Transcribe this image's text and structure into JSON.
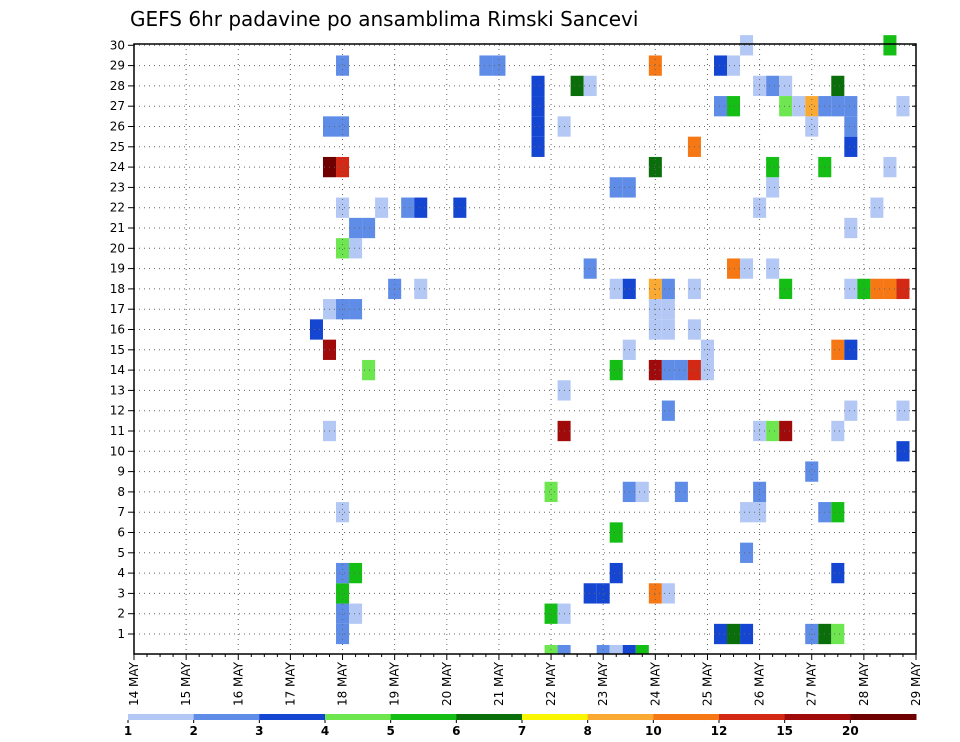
{
  "chart_data": {
    "type": "heatmap",
    "title": "GEFS 6hr padavine po ansamblima Rimski Sancevi",
    "x_ticks": [
      "14 MAY",
      "15 MAY",
      "16 MAY",
      "17 MAY",
      "18 MAY",
      "19 MAY",
      "20 MAY",
      "21 MAY",
      "22 MAY",
      "23 MAY",
      "24 MAY",
      "25 MAY",
      "26 MAY",
      "27 MAY",
      "28 MAY",
      "29 MAY"
    ],
    "y_ticks": [
      "1",
      "2",
      "3",
      "4",
      "5",
      "6",
      "7",
      "8",
      "9",
      "10",
      "11",
      "12",
      "13",
      "14",
      "15",
      "16",
      "17",
      "18",
      "19",
      "20",
      "21",
      "22",
      "23",
      "24",
      "25",
      "26",
      "27",
      "28",
      "29",
      "30"
    ],
    "colorbar": {
      "labels": [
        "1",
        "2",
        "3",
        "4",
        "5",
        "6",
        "7",
        "8",
        "10",
        "12",
        "15",
        "20"
      ],
      "colors": [
        "#b4c8f5",
        "#5f8ce6",
        "#1446d2",
        "#6ee650",
        "#14be14",
        "#0a6e0a",
        "#faf500",
        "#faaa32",
        "#f57814",
        "#d22814",
        "#a00a0a",
        "#6e0000"
      ]
    },
    "grid": true,
    "cells": [
      {
        "d": "18 MAY",
        "h": 0,
        "m": 1,
        "v": 2
      },
      {
        "d": "18 MAY",
        "h": 0,
        "m": 2,
        "v": 2
      },
      {
        "d": "18 MAY",
        "h": 6,
        "m": 2,
        "v": 1
      },
      {
        "d": "18 MAY",
        "h": 0,
        "m": 3,
        "v": 5
      },
      {
        "d": "18 MAY",
        "h": 0,
        "m": 4,
        "v": 2
      },
      {
        "d": "18 MAY",
        "h": 6,
        "m": 4,
        "v": 5
      },
      {
        "d": "18 MAY",
        "h": 0,
        "m": 7,
        "v": 1
      },
      {
        "d": "17 MAY",
        "h": 18,
        "m": 11,
        "v": 1
      },
      {
        "d": "18 MAY",
        "h": 12,
        "m": 14,
        "v": 4
      },
      {
        "d": "17 MAY",
        "h": 18,
        "m": 15,
        "v": 15
      },
      {
        "d": "17 MAY",
        "h": 12,
        "m": 16,
        "v": 3
      },
      {
        "d": "17 MAY",
        "h": 18,
        "m": 17,
        "v": 1
      },
      {
        "d": "18 MAY",
        "h": 0,
        "m": 17,
        "v": 2
      },
      {
        "d": "18 MAY",
        "h": 6,
        "m": 17,
        "v": 2
      },
      {
        "d": "18 MAY",
        "h": 0,
        "m": 20,
        "v": 4
      },
      {
        "d": "18 MAY",
        "h": 6,
        "m": 20,
        "v": 1
      },
      {
        "d": "18 MAY",
        "h": 6,
        "m": 21,
        "v": 2
      },
      {
        "d": "18 MAY",
        "h": 12,
        "m": 21,
        "v": 2
      },
      {
        "d": "18 MAY",
        "h": 0,
        "m": 22,
        "v": 1
      },
      {
        "d": "17 MAY",
        "h": 18,
        "m": 24,
        "v": 20
      },
      {
        "d": "18 MAY",
        "h": 0,
        "m": 24,
        "v": 12
      },
      {
        "d": "17 MAY",
        "h": 18,
        "m": 26,
        "v": 2
      },
      {
        "d": "18 MAY",
        "h": 0,
        "m": 26,
        "v": 2
      },
      {
        "d": "18 MAY",
        "h": 0,
        "m": 29,
        "v": 2
      },
      {
        "d": "19 MAY",
        "h": 0,
        "m": 18,
        "v": 2
      },
      {
        "d": "19 MAY",
        "h": 12,
        "m": 18,
        "v": 1
      },
      {
        "d": "18 MAY",
        "h": 18,
        "m": 22,
        "v": 1
      },
      {
        "d": "19 MAY",
        "h": 6,
        "m": 22,
        "v": 2
      },
      {
        "d": "19 MAY",
        "h": 12,
        "m": 22,
        "v": 3
      },
      {
        "d": "20 MAY",
        "h": 6,
        "m": 22,
        "v": 3
      },
      {
        "d": "20 MAY",
        "h": 18,
        "m": 29,
        "v": 2
      },
      {
        "d": "21 MAY",
        "h": 0,
        "m": 29,
        "v": 2
      },
      {
        "d": "22 MAY",
        "h": 0,
        "m": 2,
        "v": 5
      },
      {
        "d": "22 MAY",
        "h": 6,
        "m": 2,
        "v": 1
      },
      {
        "d": "22 MAY",
        "h": 0,
        "m": 8,
        "v": 4
      },
      {
        "d": "22 MAY",
        "h": 6,
        "m": 11,
        "v": 15
      },
      {
        "d": "22 MAY",
        "h": 6,
        "m": 13,
        "v": 1
      },
      {
        "d": "21 MAY",
        "h": 18,
        "m": 25,
        "v": 3
      },
      {
        "d": "21 MAY",
        "h": 18,
        "m": 26,
        "v": 3
      },
      {
        "d": "22 MAY",
        "h": 6,
        "m": 26,
        "v": 1
      },
      {
        "d": "21 MAY",
        "h": 18,
        "m": 27,
        "v": 3
      },
      {
        "d": "21 MAY",
        "h": 18,
        "m": 28,
        "v": 3
      },
      {
        "d": "22 MAY",
        "h": 12,
        "m": 28,
        "v": 6
      },
      {
        "d": "22 MAY",
        "h": 18,
        "m": 28,
        "v": 1
      },
      {
        "d": "22 MAY",
        "h": 18,
        "m": 3,
        "v": 3
      },
      {
        "d": "23 MAY",
        "h": 0,
        "m": 3,
        "v": 3
      },
      {
        "d": "23 MAY",
        "h": 6,
        "m": 4,
        "v": 3
      },
      {
        "d": "23 MAY",
        "h": 6,
        "m": 6,
        "v": 5
      },
      {
        "d": "23 MAY",
        "h": 12,
        "m": 8,
        "v": 2
      },
      {
        "d": "23 MAY",
        "h": 18,
        "m": 8,
        "v": 1
      },
      {
        "d": "23 MAY",
        "h": 6,
        "m": 14,
        "v": 5
      },
      {
        "d": "23 MAY",
        "h": 12,
        "m": 15,
        "v": 1
      },
      {
        "d": "23 MAY",
        "h": 6,
        "m": 18,
        "v": 1
      },
      {
        "d": "23 MAY",
        "h": 12,
        "m": 18,
        "v": 3
      },
      {
        "d": "22 MAY",
        "h": 18,
        "m": 19,
        "v": 2
      },
      {
        "d": "23 MAY",
        "h": 6,
        "m": 23,
        "v": 2
      },
      {
        "d": "23 MAY",
        "h": 12,
        "m": 23,
        "v": 2
      },
      {
        "d": "24 MAY",
        "h": 0,
        "m": 3,
        "v": 10
      },
      {
        "d": "24 MAY",
        "h": 6,
        "m": 3,
        "v": 1
      },
      {
        "d": "24 MAY",
        "h": 12,
        "m": 8,
        "v": 2
      },
      {
        "d": "24 MAY",
        "h": 6,
        "m": 12,
        "v": 2
      },
      {
        "d": "24 MAY",
        "h": 0,
        "m": 14,
        "v": 15
      },
      {
        "d": "24 MAY",
        "h": 6,
        "m": 14,
        "v": 2
      },
      {
        "d": "24 MAY",
        "h": 12,
        "m": 14,
        "v": 2
      },
      {
        "d": "24 MAY",
        "h": 18,
        "m": 14,
        "v": 12
      },
      {
        "d": "24 MAY",
        "h": 0,
        "m": 16,
        "v": 1
      },
      {
        "d": "24 MAY",
        "h": 6,
        "m": 16,
        "v": 1
      },
      {
        "d": "24 MAY",
        "h": 18,
        "m": 16,
        "v": 1
      },
      {
        "d": "24 MAY",
        "h": 0,
        "m": 17,
        "v": 1
      },
      {
        "d": "24 MAY",
        "h": 6,
        "m": 17,
        "v": 1
      },
      {
        "d": "24 MAY",
        "h": 0,
        "m": 18,
        "v": 8
      },
      {
        "d": "24 MAY",
        "h": 6,
        "m": 18,
        "v": 2
      },
      {
        "d": "24 MAY",
        "h": 18,
        "m": 18,
        "v": 1
      },
      {
        "d": "24 MAY",
        "h": 0,
        "m": 24,
        "v": 6
      },
      {
        "d": "24 MAY",
        "h": 18,
        "m": 25,
        "v": 10
      },
      {
        "d": "24 MAY",
        "h": 0,
        "m": 29,
        "v": 10
      },
      {
        "d": "25 MAY",
        "h": 0,
        "m": 14,
        "v": 1
      },
      {
        "d": "25 MAY",
        "h": 0,
        "m": 15,
        "v": 1
      },
      {
        "d": "25 MAY",
        "h": 6,
        "m": 1,
        "v": 3
      },
      {
        "d": "25 MAY",
        "h": 12,
        "m": 1,
        "v": 6
      },
      {
        "d": "25 MAY",
        "h": 18,
        "m": 1,
        "v": 3
      },
      {
        "d": "25 MAY",
        "h": 18,
        "m": 5,
        "v": 2
      },
      {
        "d": "25 MAY",
        "h": 18,
        "m": 7,
        "v": 1
      },
      {
        "d": "26 MAY",
        "h": 0,
        "m": 7,
        "v": 1
      },
      {
        "d": "26 MAY",
        "h": 0,
        "m": 8,
        "v": 2
      },
      {
        "d": "26 MAY",
        "h": 0,
        "m": 11,
        "v": 1
      },
      {
        "d": "26 MAY",
        "h": 6,
        "m": 11,
        "v": 4
      },
      {
        "d": "26 MAY",
        "h": 12,
        "m": 11,
        "v": 15
      },
      {
        "d": "25 MAY",
        "h": 12,
        "m": 19,
        "v": 10
      },
      {
        "d": "25 MAY",
        "h": 18,
        "m": 19,
        "v": 1
      },
      {
        "d": "26 MAY",
        "h": 6,
        "m": 19,
        "v": 1
      },
      {
        "d": "26 MAY",
        "h": 12,
        "m": 18,
        "v": 5
      },
      {
        "d": "26 MAY",
        "h": 0,
        "m": 22,
        "v": 1
      },
      {
        "d": "26 MAY",
        "h": 6,
        "m": 23,
        "v": 1
      },
      {
        "d": "26 MAY",
        "h": 6,
        "m": 24,
        "v": 5
      },
      {
        "d": "25 MAY",
        "h": 12,
        "m": 27,
        "v": 5
      },
      {
        "d": "25 MAY",
        "h": 6,
        "m": 27,
        "v": 2
      },
      {
        "d": "25 MAY",
        "h": 6,
        "m": 29,
        "v": 3
      },
      {
        "d": "25 MAY",
        "h": 12,
        "m": 29,
        "v": 1
      },
      {
        "d": "25 MAY",
        "h": 18,
        "m": 30,
        "v": 1
      },
      {
        "d": "26 MAY",
        "h": 6,
        "m": 28,
        "v": 2
      },
      {
        "d": "26 MAY",
        "h": 12,
        "m": 28,
        "v": 1
      },
      {
        "d": "26 MAY",
        "h": 0,
        "m": 28,
        "v": 1
      },
      {
        "d": "26 MAY",
        "h": 12,
        "m": 27,
        "v": 4
      },
      {
        "d": "26 MAY",
        "h": 18,
        "m": 27,
        "v": 1
      },
      {
        "d": "27 MAY",
        "h": 0,
        "m": 1,
        "v": 2
      },
      {
        "d": "27 MAY",
        "h": 6,
        "m": 1,
        "v": 6
      },
      {
        "d": "27 MAY",
        "h": 12,
        "m": 1,
        "v": 4
      },
      {
        "d": "27 MAY",
        "h": 12,
        "m": 4,
        "v": 3
      },
      {
        "d": "27 MAY",
        "h": 6,
        "m": 7,
        "v": 2
      },
      {
        "d": "27 MAY",
        "h": 12,
        "m": 7,
        "v": 5
      },
      {
        "d": "27 MAY",
        "h": 0,
        "m": 9,
        "v": 2
      },
      {
        "d": "27 MAY",
        "h": 12,
        "m": 11,
        "v": 1
      },
      {
        "d": "27 MAY",
        "h": 18,
        "m": 12,
        "v": 1
      },
      {
        "d": "27 MAY",
        "h": 12,
        "m": 15,
        "v": 10
      },
      {
        "d": "27 MAY",
        "h": 18,
        "m": 15,
        "v": 3
      },
      {
        "d": "27 MAY",
        "h": 18,
        "m": 18,
        "v": 1
      },
      {
        "d": "28 MAY",
        "h": 0,
        "m": 18,
        "v": 5
      },
      {
        "d": "28 MAY",
        "h": 6,
        "m": 18,
        "v": 10
      },
      {
        "d": "28 MAY",
        "h": 12,
        "m": 18,
        "v": 10
      },
      {
        "d": "28 MAY",
        "h": 18,
        "m": 18,
        "v": 12
      },
      {
        "d": "27 MAY",
        "h": 18,
        "m": 21,
        "v": 1
      },
      {
        "d": "28 MAY",
        "h": 6,
        "m": 22,
        "v": 1
      },
      {
        "d": "27 MAY",
        "h": 6,
        "m": 24,
        "v": 5
      },
      {
        "d": "27 MAY",
        "h": 18,
        "m": 25,
        "v": 3
      },
      {
        "d": "27 MAY",
        "h": 18,
        "m": 26,
        "v": 2
      },
      {
        "d": "27 MAY",
        "h": 0,
        "m": 26,
        "v": 1
      },
      {
        "d": "27 MAY",
        "h": 0,
        "m": 27,
        "v": 8
      },
      {
        "d": "27 MAY",
        "h": 6,
        "m": 27,
        "v": 2
      },
      {
        "d": "27 MAY",
        "h": 12,
        "m": 27,
        "v": 2
      },
      {
        "d": "27 MAY",
        "h": 18,
        "m": 27,
        "v": 2
      },
      {
        "d": "27 MAY",
        "h": 12,
        "m": 28,
        "v": 6
      },
      {
        "d": "28 MAY",
        "h": 12,
        "m": 30,
        "v": 5
      },
      {
        "d": "28 MAY",
        "h": 18,
        "m": 10,
        "v": 3
      },
      {
        "d": "28 MAY",
        "h": 12,
        "m": 24,
        "v": 1
      },
      {
        "d": "28 MAY",
        "h": 18,
        "m": 27,
        "v": 1
      },
      {
        "d": "28 MAY",
        "h": 18,
        "m": 12,
        "v": 1
      }
    ],
    "base_row": [
      {
        "d": "22 MAY",
        "h": 0,
        "v": 4
      },
      {
        "d": "22 MAY",
        "h": 6,
        "v": 2
      },
      {
        "d": "23 MAY",
        "h": 0,
        "v": 2
      },
      {
        "d": "23 MAY",
        "h": 6,
        "v": 1
      },
      {
        "d": "23 MAY",
        "h": 12,
        "v": 3
      },
      {
        "d": "23 MAY",
        "h": 18,
        "v": 5
      }
    ]
  }
}
